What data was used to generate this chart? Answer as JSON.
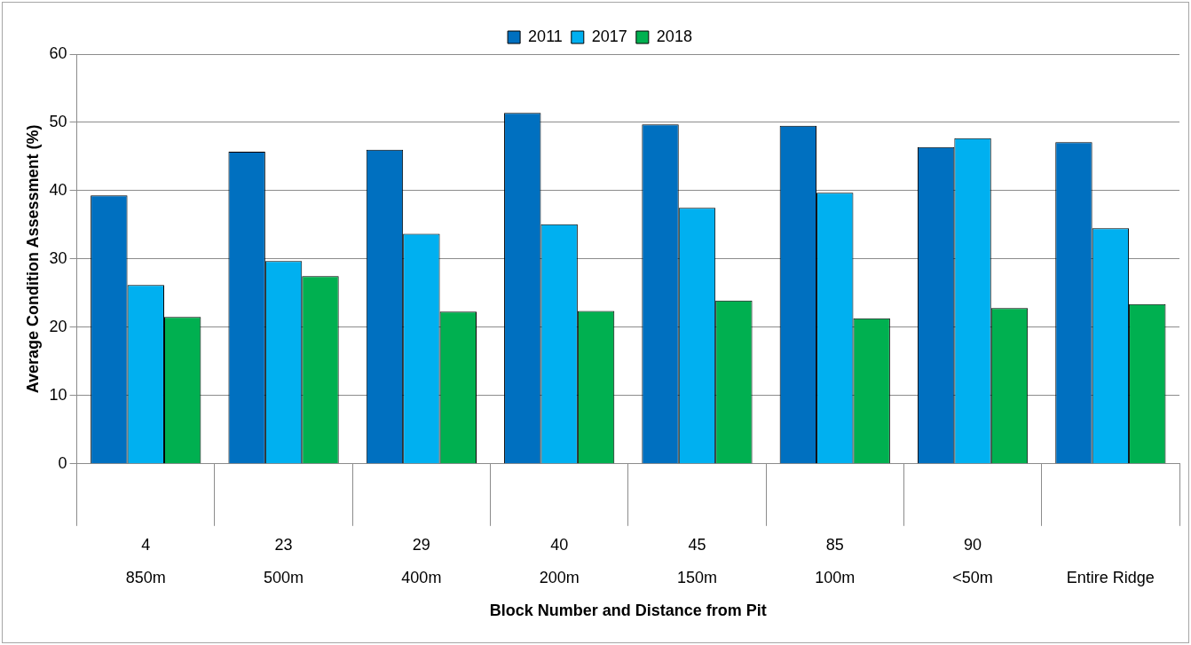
{
  "chart_data": {
    "type": "bar",
    "xlabel": "Block Number and Distance from Pit",
    "ylabel": "Average Condition Assessment (%)",
    "categories": [
      "4\n850m",
      "23\n500m",
      "29\n400m",
      "40\n200m",
      "45\n150m",
      "85\n100m",
      "90\n<50m",
      "\nEntire Ridge"
    ],
    "series": [
      {
        "name": "2011",
        "color": "#0070c0",
        "values": [
          39.3,
          45.7,
          46.0,
          51.4,
          49.7,
          49.5,
          46.4,
          47.1
        ]
      },
      {
        "name": "2017",
        "color": "#00b0f0",
        "values": [
          26.2,
          29.7,
          33.7,
          35.1,
          37.5,
          39.7,
          47.7,
          34.5
        ]
      },
      {
        "name": "2018",
        "color": "#00b050",
        "values": [
          21.5,
          27.5,
          22.3,
          22.4,
          23.9,
          21.3,
          22.8,
          23.4
        ]
      }
    ],
    "ylim": [
      0,
      60
    ],
    "yticks": [
      0,
      10,
      20,
      30,
      40,
      50,
      60
    ],
    "grid": "y",
    "legend": "top"
  }
}
